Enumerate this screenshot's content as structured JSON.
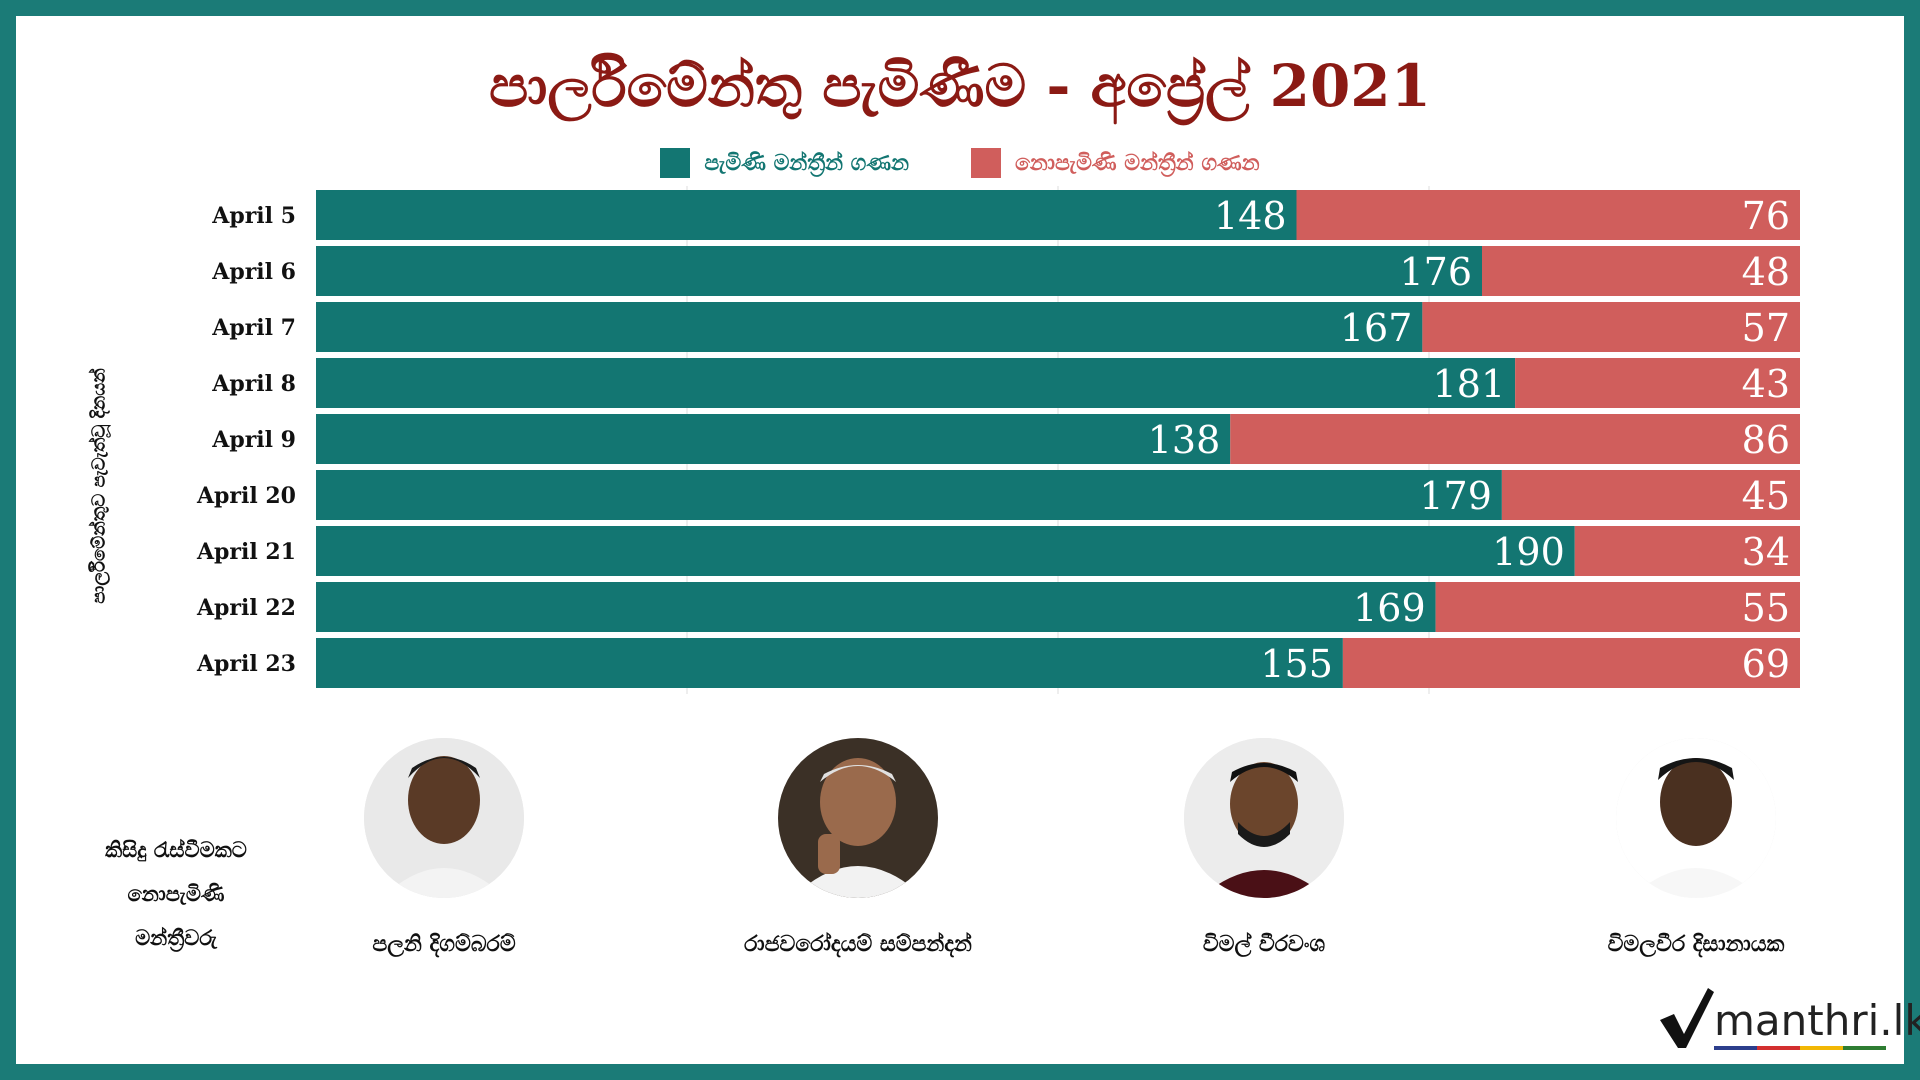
{
  "title": "පාර්ලිමේන්තු පැමිණීම - අප්‍රේල් 2021",
  "legend": [
    {
      "label": "පැමිණි මන්ත්‍රීන් ගණන",
      "color": "#137672"
    },
    {
      "label": "නොපැමිණි මන්ත්‍රීන් ගණන",
      "color": "#d05e5c"
    }
  ],
  "y_axis_title": "පාර්ලිමේන්තුව පැවැත්වූ දිනයන්",
  "chart_data": {
    "type": "bar",
    "orientation": "horizontal",
    "stacked": true,
    "categories": [
      "April 5",
      "April 6",
      "April 7",
      "April 8",
      "April 9",
      "April 20",
      "April 21",
      "April 22",
      "April 23"
    ],
    "series": [
      {
        "name": "පැමිණි මන්ත්‍රීන් ගණන",
        "values": [
          148,
          176,
          167,
          181,
          138,
          179,
          190,
          169,
          155
        ],
        "color": "#137672"
      },
      {
        "name": "නොපැමිණි මන්ත්‍රීන් ගණන",
        "values": [
          76,
          48,
          57,
          43,
          86,
          45,
          34,
          55,
          69
        ],
        "color": "#d05e5c"
      }
    ],
    "xlim": [
      0,
      224
    ],
    "title": "පාර්ලිමේන්තු පැමිණීම - අප්‍රේල් 2021",
    "ylabel": "පාර්ලිමේන්තුව පැවැත්වූ දිනයන්",
    "grid": true,
    "legend_position": "top-center"
  },
  "absent_members": {
    "heading_lines": [
      "කිසිදු රැස්වීමකට",
      "නොපැමිණි",
      "මන්ත්‍රීවරු"
    ],
    "members": [
      {
        "name": "පලනි දිගම්බරම්"
      },
      {
        "name": "රාජවරෝදයම් සම්පන්දන්"
      },
      {
        "name": "විමල් වීරවංශ"
      },
      {
        "name": "විමලවීර දිසානායක"
      }
    ]
  },
  "logo": {
    "text": "manthri.lk",
    "underline_colors": [
      "#2c3e8c",
      "#d32f2f",
      "#f2b705",
      "#2e7d32"
    ]
  }
}
